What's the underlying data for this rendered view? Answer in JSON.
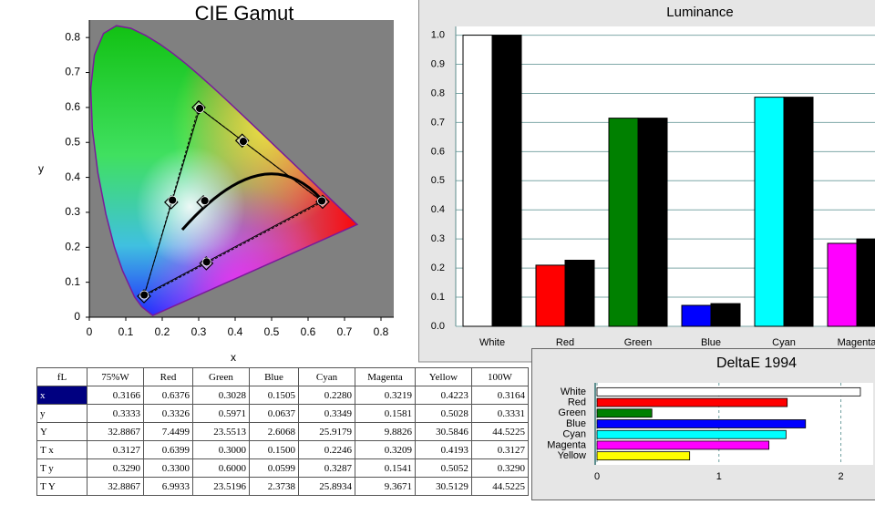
{
  "chart_data": [
    {
      "type": "scatter",
      "title": "CIE Gamut",
      "xlabel": "x",
      "ylabel": "y",
      "xlim": [
        0,
        0.835
      ],
      "ylim": [
        0,
        0.85
      ],
      "xticks": [
        0,
        0.1,
        0.2,
        0.3,
        0.4,
        0.5,
        0.6,
        0.7,
        0.8
      ],
      "yticks": [
        0,
        0.1,
        0.2,
        0.3,
        0.4,
        0.5,
        0.6,
        0.7,
        0.8
      ],
      "series": [
        {
          "color": "#000000",
          "marker": "circle",
          "triangle": "solid",
          "x": [
            0.6376,
            0.3028,
            0.1505,
            0.228,
            0.3219,
            0.4223,
            0.3166
          ],
          "values": [
            0.3326,
            0.5971,
            0.0637,
            0.3349,
            0.1581,
            0.5028,
            0.3333
          ]
        },
        {
          "color": "#000000",
          "marker": "diamond",
          "triangle": "dashed",
          "x": [
            0.6399,
            0.3,
            0.15,
            0.2246,
            0.3209,
            0.4193,
            0.3127
          ],
          "values": [
            0.33,
            0.6,
            0.0599,
            0.3287,
            0.1541,
            0.5052,
            0.329
          ]
        }
      ]
    },
    {
      "type": "bar",
      "title": "Luminance",
      "categories": [
        "White",
        "Red",
        "Green",
        "Blue",
        "Cyan",
        "Magenta"
      ],
      "ylim": [
        0,
        1.03
      ],
      "yticks": [
        {
          "value": 0,
          "label": "0.0"
        },
        0.1,
        0.2,
        0.3,
        0.4,
        0.5,
        0.6,
        0.7,
        0.8,
        0.9,
        {
          "value": 1,
          "label": "1.0"
        }
      ],
      "grid": true,
      "series": [
        {
          "colors": [
            "#ffffff",
            "#ff0000",
            "#008000",
            "#0000ff",
            "#00ffff",
            "#ff00ff"
          ],
          "values": [
            1.0,
            0.21,
            0.715,
            0.072,
            0.787,
            0.285
          ]
        },
        {
          "color": "#000000",
          "values": [
            1.0,
            0.227,
            0.715,
            0.078,
            0.787,
            0.3
          ]
        }
      ]
    },
    {
      "type": "hbar",
      "title": "DeltaE 1994",
      "categories": [
        "White",
        "Red",
        "Green",
        "Blue",
        "Cyan",
        "Magenta",
        "Yellow"
      ],
      "values": [
        2.16,
        1.56,
        0.45,
        1.71,
        1.55,
        1.41,
        0.76
      ],
      "colors": [
        "#ffffff",
        "#ff0000",
        "#008000",
        "#0000ff",
        "#00ffff",
        "#ff00ff",
        "#ffff00"
      ],
      "xlim": [
        0,
        2.25
      ],
      "xticks": [
        0,
        1,
        2
      ],
      "grid": true
    }
  ],
  "table": {
    "header": [
      "fL",
      "75%W",
      "Red",
      "Green",
      "Blue",
      "Cyan",
      "Magenta",
      "Yellow",
      "100W"
    ],
    "rows": [
      [
        "x",
        "0.3166",
        "0.6376",
        "0.3028",
        "0.1505",
        "0.2280",
        "0.3219",
        "0.4223",
        "0.3164"
      ],
      [
        "y",
        "0.3333",
        "0.3326",
        "0.5971",
        "0.0637",
        "0.3349",
        "0.1581",
        "0.5028",
        "0.3331"
      ],
      [
        "Y",
        "32.8867",
        "7.4499",
        "23.5513",
        "2.6068",
        "25.9179",
        "9.8826",
        "30.5846",
        "44.5225"
      ],
      [
        "T x",
        "0.3127",
        "0.6399",
        "0.3000",
        "0.1500",
        "0.2246",
        "0.3209",
        "0.4193",
        "0.3127"
      ],
      [
        "T y",
        "0.3290",
        "0.3300",
        "0.6000",
        "0.0599",
        "0.3287",
        "0.1541",
        "0.5052",
        "0.3290"
      ],
      [
        "T Y",
        "32.8867",
        "6.9933",
        "23.5196",
        "2.3738",
        "25.8934",
        "9.3671",
        "30.5129",
        "44.5225"
      ]
    ]
  }
}
